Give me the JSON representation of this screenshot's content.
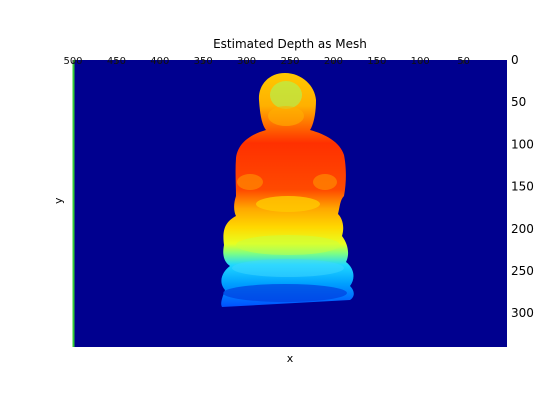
{
  "chart_data": {
    "type": "heatmap",
    "title": "Estimated Depth as Mesh",
    "xlabel": "x",
    "ylabel": "y",
    "colormap": "jet",
    "background_color": "#00008f",
    "y_axis": {
      "position": "right",
      "direction": "reverse",
      "range": [
        0,
        340
      ]
    },
    "y_ticks": [
      0,
      50,
      100,
      150,
      200,
      250,
      300
    ],
    "x_axis": {
      "position": "top",
      "direction": "reverse",
      "range": [
        500,
        0
      ]
    },
    "x_ticks": [
      50,
      100,
      150,
      200,
      250,
      300,
      350,
      400,
      450,
      500
    ],
    "subject": "seated figure depth surface",
    "depth_rows": [
      {
        "y": 20,
        "x_left": 300,
        "x_right": 270,
        "color": "#ffd000"
      },
      {
        "y": 35,
        "x_left": 305,
        "x_right": 265,
        "color": "#ffd800"
      },
      {
        "y": 60,
        "x_left": 308,
        "x_right": 262,
        "color": "#ffc400"
      },
      {
        "y": 80,
        "x_left": 310,
        "x_right": 258,
        "color": "#ffb000"
      },
      {
        "y": 95,
        "x_left": 325,
        "x_right": 245,
        "color": "#ff7000"
      },
      {
        "y": 110,
        "x_left": 335,
        "x_right": 232,
        "color": "#ff3a00"
      },
      {
        "y": 140,
        "x_left": 338,
        "x_right": 230,
        "color": "#ff4500"
      },
      {
        "y": 165,
        "x_left": 340,
        "x_right": 228,
        "color": "#ffa000"
      },
      {
        "y": 190,
        "x_left": 352,
        "x_right": 220,
        "color": "#ffd000"
      },
      {
        "y": 215,
        "x_left": 355,
        "x_right": 220,
        "color": "#ffee00"
      },
      {
        "y": 230,
        "x_left": 355,
        "x_right": 222,
        "color": "#a0ff60"
      },
      {
        "y": 248,
        "x_left": 360,
        "x_right": 212,
        "color": "#30e0ff"
      },
      {
        "y": 270,
        "x_left": 360,
        "x_right": 210,
        "color": "#00a0ff"
      },
      {
        "y": 290,
        "x_left": 362,
        "x_right": 212,
        "color": "#0060ff"
      }
    ]
  }
}
